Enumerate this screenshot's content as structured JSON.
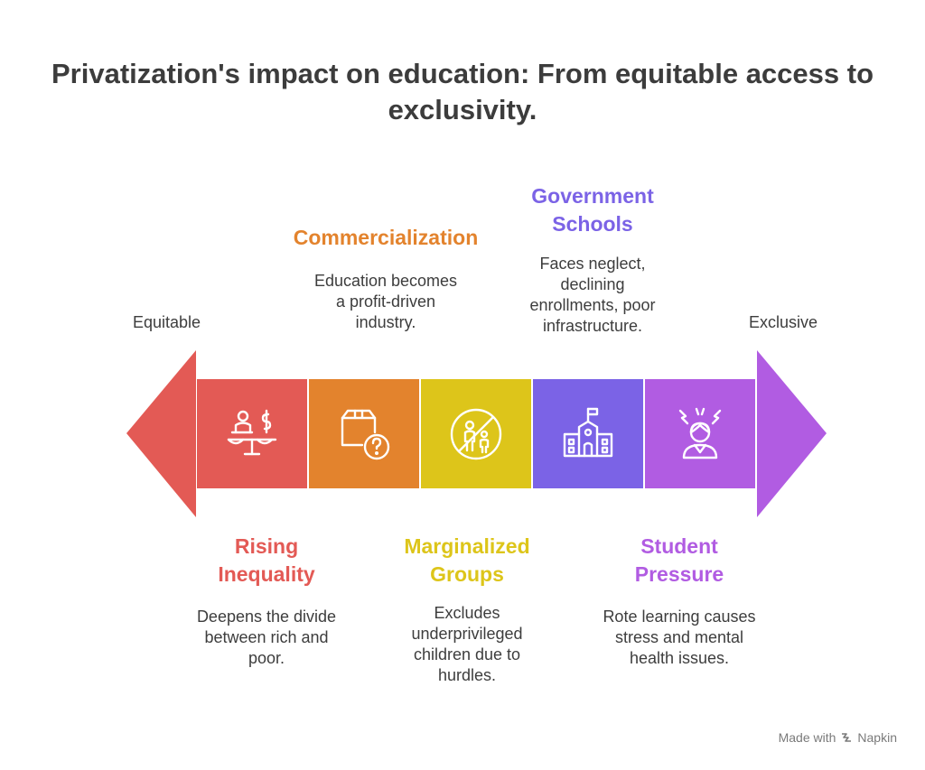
{
  "title": "Privatization's impact on education: From equitable access to exclusivity.",
  "scale": {
    "left": "Equitable",
    "right": "Exclusive"
  },
  "colors": {
    "red": "#e35a55",
    "orange": "#e3832d",
    "yellow": "#ddc51a",
    "violet": "#7b63e6",
    "purple": "#b15ce2"
  },
  "stages": [
    {
      "icon": "scale-balance-person-dollar-icon",
      "heading_lines": [
        "Rising",
        "Inequality"
      ],
      "desc_lines": [
        "Deepens the divide",
        "between rich and",
        "poor."
      ],
      "color": "#e35a55"
    },
    {
      "icon": "box-question-icon",
      "heading_lines": [
        "Commercialization"
      ],
      "desc_lines": [
        "Education becomes",
        "a profit-driven",
        "industry."
      ],
      "color": "#e3832d"
    },
    {
      "icon": "no-children-icon",
      "heading_lines": [
        "Marginalized",
        "Groups"
      ],
      "desc_lines": [
        "Excludes",
        "underprivileged",
        "children due to",
        "hurdles."
      ],
      "color": "#ddc51a"
    },
    {
      "icon": "school-building-icon",
      "heading_lines": [
        "Government",
        "Schools"
      ],
      "desc_lines": [
        "Faces neglect,",
        "declining",
        "enrollments, poor",
        "infrastructure."
      ],
      "color": "#7b63e6"
    },
    {
      "icon": "stressed-student-icon",
      "heading_lines": [
        "Student",
        "Pressure"
      ],
      "desc_lines": [
        "Rote learning causes",
        "stress and mental",
        "health issues."
      ],
      "color": "#b15ce2"
    }
  ],
  "brand": {
    "prefix": "Made with",
    "name": "Napkin"
  }
}
